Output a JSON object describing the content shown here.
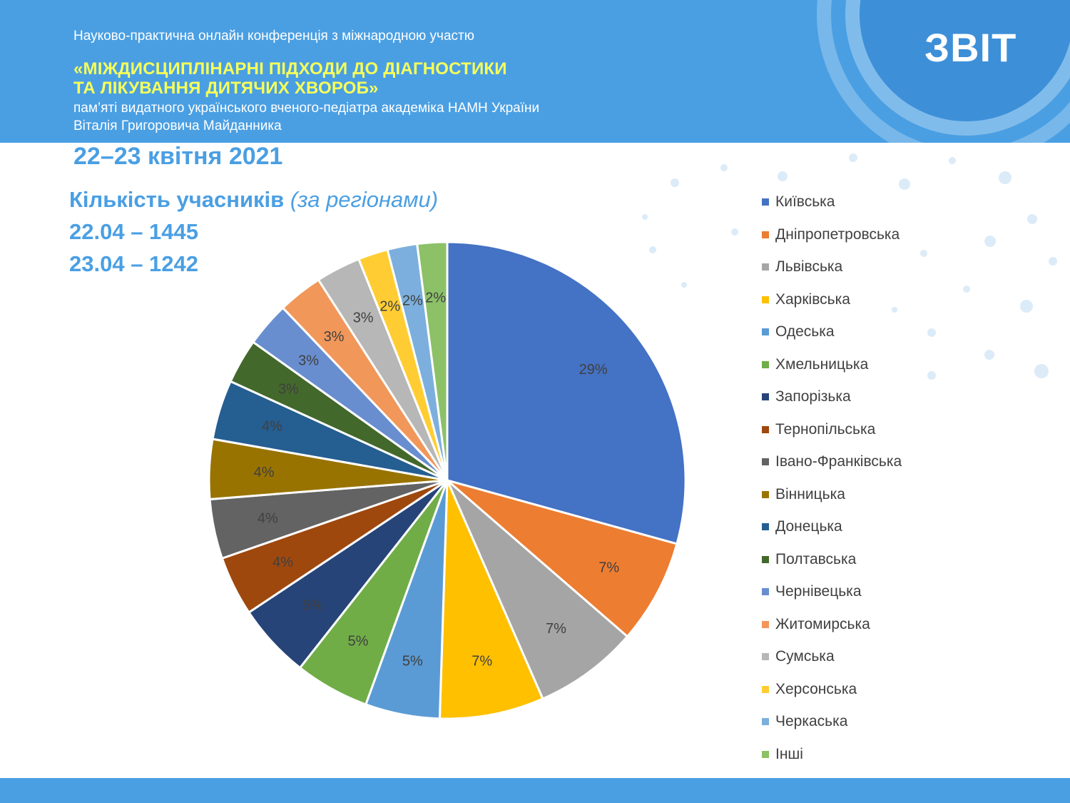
{
  "header": {
    "line1": "Науково-практична онлайн конференція з міжнародною участю",
    "line2": "«МІЖДИСЦИПЛІНАРНІ ПІДХОДИ ДО ДІАГНОСТИКИ",
    "line3": "ТА ЛІКУВАННЯ ДИТЯЧИХ ХВОРОБ»",
    "line4": "пам’яті видатного українського вченого-педіатра академіка НАМН України",
    "line5": "Віталія Григоровича Майданника",
    "report": "ЗВІТ",
    "dates": "22–23 квітня 2021"
  },
  "summary": {
    "title": "Кількість учасників",
    "title_note": "(за регіонами)",
    "day1": "22.04 – 1445",
    "day2": "23.04 – 1242"
  },
  "colors": {
    "brand_blue": "#4a9fe3",
    "title_yellow": "#f6ff5a"
  },
  "chart_data": {
    "type": "pie",
    "categories": [
      "Київська",
      "Дніпропетровська",
      "Львівська",
      "Харківська",
      "Одеська",
      "Хмельницька",
      "Запорізька",
      "Тернопільська",
      "Івано-Франківська",
      "Вінницька",
      "Донецька",
      "Полтавська",
      "Чернівецька",
      "Житомирська",
      "Сумська",
      "Херсонська",
      "Черкаська",
      "Інші"
    ],
    "values": [
      29,
      7,
      7,
      7,
      5,
      5,
      5,
      4,
      4,
      4,
      4,
      3,
      3,
      3,
      3,
      2,
      2,
      2
    ],
    "labels": [
      "29%",
      "7%",
      "7%",
      "7%",
      "5%",
      "5%",
      "5%",
      "4%",
      "4%",
      "4%",
      "4%",
      "3%",
      "3%",
      "3%",
      "3%",
      "2%",
      "2%",
      "2%"
    ],
    "colors": [
      "#4472c4",
      "#ed7d31",
      "#a5a5a5",
      "#ffc000",
      "#5b9bd5",
      "#70ad47",
      "#264478",
      "#9e480e",
      "#636363",
      "#997300",
      "#255e91",
      "#43682b",
      "#698ed0",
      "#f1975a",
      "#b7b7b7",
      "#ffcd33",
      "#7cafdd",
      "#8cc168"
    ],
    "legend_position": "right"
  }
}
